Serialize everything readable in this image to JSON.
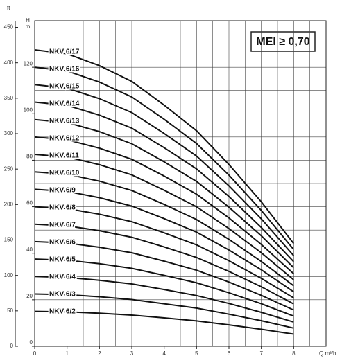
{
  "chart_data": {
    "type": "line",
    "badge": "MEI ≥ 0,70",
    "x_label": "Q m³/h",
    "y_label": "H",
    "y_unit": "m",
    "y2_label": "ft",
    "x": [
      0,
      1,
      2,
      3,
      4,
      5,
      6,
      7,
      8
    ],
    "xlim": [
      0,
      9
    ],
    "xticks": [
      0,
      1,
      2,
      3,
      4,
      5,
      6,
      7,
      8
    ],
    "ylim": [
      0,
      140
    ],
    "yticks": [
      0,
      20,
      40,
      60,
      80,
      100,
      120
    ],
    "y2lim": [
      0,
      459.3
    ],
    "y2ticks": [
      0,
      50,
      100,
      150,
      200,
      250,
      300,
      350,
      400,
      450
    ],
    "grid": true,
    "series": [
      {
        "name": "NKV 6/2",
        "color": "#111111",
        "values": [
          15,
          14.8,
          14.2,
          13.4,
          12.2,
          10.9,
          9.2,
          7.3,
          5.2
        ]
      },
      {
        "name": "NKV 6/3",
        "color": "#111111",
        "values": [
          22.5,
          22.2,
          21.3,
          20.1,
          18.3,
          16.4,
          13.8,
          11,
          7.8
        ]
      },
      {
        "name": "NKV 6/4",
        "color": "#111111",
        "values": [
          30,
          29.6,
          28.4,
          26.8,
          24.4,
          21.8,
          18.4,
          14.6,
          10.4
        ]
      },
      {
        "name": "NKV 6/5",
        "color": "#111111",
        "values": [
          37.5,
          37,
          35.5,
          33.5,
          30.5,
          27.3,
          23,
          18.3,
          13
        ]
      },
      {
        "name": "NKV 6/6",
        "color": "#111111",
        "values": [
          45,
          44.4,
          42.6,
          40.2,
          36.6,
          32.7,
          27.6,
          21.9,
          15.6
        ]
      },
      {
        "name": "NKV 6/7",
        "color": "#111111",
        "values": [
          52.5,
          51.8,
          49.7,
          46.9,
          42.7,
          38.2,
          32.2,
          25.6,
          18.2
        ]
      },
      {
        "name": "NKV 6/8",
        "color": "#111111",
        "values": [
          60,
          59.2,
          56.8,
          53.6,
          48.8,
          43.6,
          36.8,
          29.2,
          20.8
        ]
      },
      {
        "name": "NKV 6/9",
        "color": "#111111",
        "values": [
          67.5,
          66.6,
          63.9,
          60.3,
          54.9,
          49.1,
          41.4,
          32.9,
          23.4
        ]
      },
      {
        "name": "NKV 6/10",
        "color": "#111111",
        "values": [
          75,
          74,
          71,
          67,
          61,
          54.5,
          46,
          36.5,
          26
        ]
      },
      {
        "name": "NKV 6/11",
        "color": "#111111",
        "values": [
          82.5,
          81.4,
          78.1,
          73.7,
          67.1,
          60,
          50.6,
          40.2,
          28.6
        ]
      },
      {
        "name": "NKV 6/12",
        "color": "#111111",
        "values": [
          90,
          88.8,
          85.2,
          80.4,
          73.2,
          65.4,
          55.2,
          43.8,
          31.2
        ]
      },
      {
        "name": "NKV 6/13",
        "color": "#111111",
        "values": [
          97.5,
          96.2,
          92.3,
          87.1,
          79.3,
          70.9,
          59.8,
          47.5,
          33.8
        ]
      },
      {
        "name": "NKV 6/14",
        "color": "#111111",
        "values": [
          105,
          103.6,
          99.4,
          93.8,
          85.4,
          76.3,
          64.4,
          51.1,
          36.4
        ]
      },
      {
        "name": "NKV 6/15",
        "color": "#111111",
        "values": [
          112.5,
          111,
          106.5,
          100.5,
          91.5,
          81.8,
          69,
          54.8,
          39
        ]
      },
      {
        "name": "NKV 6/16",
        "color": "#111111",
        "values": [
          120,
          118.4,
          113.6,
          107.2,
          97.6,
          87.2,
          73.6,
          58.4,
          41.6
        ]
      },
      {
        "name": "NKV 6/17",
        "color": "#111111",
        "values": [
          127.5,
          125.8,
          120.7,
          113.9,
          103.7,
          92.7,
          78.2,
          62.1,
          44.2
        ]
      }
    ]
  }
}
